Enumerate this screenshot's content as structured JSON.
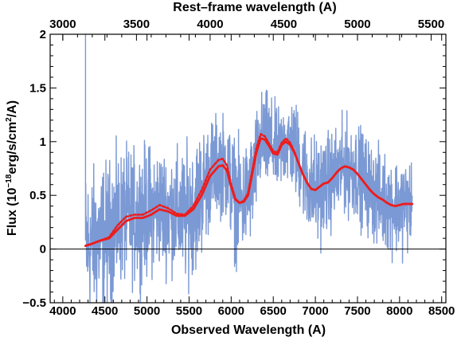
{
  "chart_data": {
    "type": "line",
    "xlabel": "Observed Wavelength (A)",
    "top_xlabel": "Rest–frame wavelength (A)",
    "ylabel_parts": {
      "prefix": "Flux (10",
      "exp1": "−18",
      "middle": "erg/s/cm",
      "exp2": "2",
      "suffix": "/A)"
    },
    "xlim": [
      3850,
      8550
    ],
    "ylim": [
      -0.5,
      2.0
    ],
    "x_ticks": [
      4000,
      4500,
      5000,
      5500,
      6000,
      6500,
      7000,
      7500,
      8000,
      8500
    ],
    "x_tick_labels": [
      "4000",
      "4500",
      "5000",
      "5500",
      "6000",
      "6500",
      "7000",
      "7500",
      "8000",
      "8500"
    ],
    "y_ticks": [
      -0.5,
      0,
      0.5,
      1.0,
      1.5,
      2.0
    ],
    "y_tick_labels": [
      "−0.5",
      "0",
      "0.5",
      "1",
      "1.5",
      "2"
    ],
    "top_ticks": [
      3000,
      3500,
      4000,
      4500,
      5000,
      5500
    ],
    "top_tick_labels": [
      "3000",
      "3500",
      "4000",
      "4500",
      "5000",
      "5500"
    ],
    "top_axis_to_observed": [
      [
        3000,
        4000
      ],
      [
        5500,
        8375
      ]
    ],
    "zero_line": 0,
    "series": [
      {
        "style": "spectrum",
        "color": "#7b99d4",
        "x": [
          4270,
          4400,
          4550,
          4700,
          4850,
          5000,
          5150,
          5300,
          5450,
          5600,
          5750,
          5850,
          5950,
          6050,
          6150,
          6250,
          6350,
          6450,
          6550,
          6650,
          6750,
          6850,
          6950,
          7050,
          7200,
          7350,
          7500,
          7650,
          7800,
          7950,
          8150
        ],
        "values": [
          0.02,
          0.08,
          0.15,
          0.3,
          0.3,
          0.35,
          0.38,
          0.35,
          0.3,
          0.45,
          0.7,
          0.8,
          0.75,
          0.45,
          0.45,
          0.6,
          1.0,
          1.0,
          0.9,
          1.0,
          0.95,
          0.75,
          0.55,
          0.55,
          0.65,
          0.78,
          0.72,
          0.55,
          0.45,
          0.4,
          0.42
        ],
        "spread": [
          0.65,
          0.6,
          0.6,
          0.55,
          0.55,
          0.55,
          0.5,
          0.5,
          0.55,
          0.55,
          0.45,
          0.4,
          0.45,
          0.5,
          0.45,
          0.45,
          0.4,
          0.4,
          0.35,
          0.35,
          0.4,
          0.4,
          0.45,
          0.45,
          0.4,
          0.4,
          0.4,
          0.4,
          0.4,
          0.4,
          0.4
        ]
      },
      {
        "style": "solid",
        "color": "#ee1c1c",
        "x": [
          4270,
          4350,
          4450,
          4550,
          4650,
          4750,
          4850,
          4950,
          5050,
          5150,
          5250,
          5350,
          5450,
          5550,
          5650,
          5750,
          5850,
          5900,
          5950,
          6000,
          6050,
          6100,
          6150,
          6200,
          6250,
          6300,
          6350,
          6400,
          6450,
          6500,
          6550,
          6600,
          6650,
          6700,
          6750,
          6800,
          6850,
          6900,
          6950,
          7000,
          7050,
          7100,
          7150,
          7200,
          7250,
          7300,
          7350,
          7400,
          7450,
          7500,
          7550,
          7600,
          7650,
          7700,
          7750,
          7800,
          7850,
          7900,
          7950,
          8000,
          8050,
          8100,
          8150
        ],
        "values": [
          0.03,
          0.05,
          0.08,
          0.1,
          0.18,
          0.26,
          0.29,
          0.29,
          0.32,
          0.37,
          0.35,
          0.31,
          0.31,
          0.37,
          0.5,
          0.68,
          0.77,
          0.78,
          0.73,
          0.58,
          0.46,
          0.43,
          0.44,
          0.5,
          0.7,
          0.9,
          1.03,
          1.02,
          0.96,
          0.89,
          0.88,
          0.97,
          1.0,
          0.97,
          0.9,
          0.8,
          0.7,
          0.62,
          0.56,
          0.55,
          0.58,
          0.61,
          0.62,
          0.66,
          0.71,
          0.75,
          0.77,
          0.76,
          0.74,
          0.7,
          0.65,
          0.6,
          0.55,
          0.51,
          0.48,
          0.46,
          0.43,
          0.41,
          0.4,
          0.41,
          0.42,
          0.42,
          0.42
        ]
      },
      {
        "style": "dotted",
        "color": "#ee1c1c",
        "x": [
          4270,
          4350,
          4450,
          4550,
          4650,
          4750,
          4850,
          4950,
          5050,
          5150,
          5250,
          5350,
          5450,
          5550,
          5650,
          5750,
          5850,
          5900,
          5950,
          6000,
          6050,
          6100,
          6150,
          6200,
          6250,
          6300,
          6350,
          6400,
          6450,
          6500,
          6550,
          6600,
          6650,
          6700,
          6750,
          6800,
          6850,
          6900,
          6950,
          7000,
          7050,
          7100,
          7150,
          7200,
          7250,
          7300,
          7350,
          7400,
          7450,
          7500,
          7550,
          7600,
          7650,
          7700,
          7750,
          7800,
          7850,
          7900,
          7950,
          8000,
          8050,
          8100,
          8150
        ],
        "values": [
          0.03,
          0.05,
          0.08,
          0.11,
          0.22,
          0.3,
          0.32,
          0.32,
          0.36,
          0.41,
          0.38,
          0.33,
          0.32,
          0.4,
          0.55,
          0.74,
          0.83,
          0.84,
          0.78,
          0.6,
          0.47,
          0.43,
          0.45,
          0.52,
          0.73,
          0.94,
          1.07,
          1.05,
          0.98,
          0.91,
          0.9,
          0.99,
          1.03,
          0.99,
          0.91,
          0.8,
          0.7,
          0.62,
          0.56,
          0.55,
          0.58,
          0.61,
          0.62,
          0.66,
          0.71,
          0.75,
          0.77,
          0.76,
          0.74,
          0.7,
          0.65,
          0.6,
          0.55,
          0.51,
          0.48,
          0.46,
          0.43,
          0.41,
          0.4,
          0.41,
          0.42,
          0.42,
          0.42
        ]
      }
    ]
  }
}
